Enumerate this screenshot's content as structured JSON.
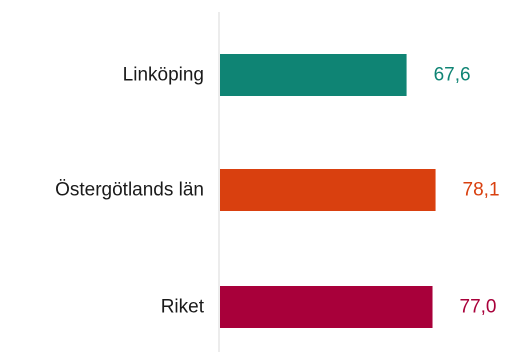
{
  "chart_data": {
    "type": "bar",
    "orientation": "horizontal",
    "categories": [
      "Linköping",
      "Östergötlands län",
      "Riket"
    ],
    "values": [
      67.6,
      78.1,
      77.0
    ],
    "value_labels": [
      "67,6",
      "78,1",
      "77,0"
    ],
    "colors": [
      "#0f8474",
      "#d9400f",
      "#a8003a"
    ],
    "xlim": [
      0,
      100
    ],
    "grid": false,
    "legend": "none"
  }
}
